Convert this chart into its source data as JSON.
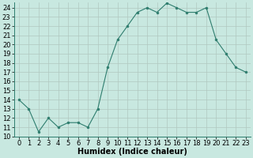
{
  "x": [
    0,
    1,
    2,
    3,
    4,
    5,
    6,
    7,
    8,
    9,
    10,
    11,
    12,
    13,
    14,
    15,
    16,
    17,
    18,
    19,
    20,
    21,
    22,
    23
  ],
  "y": [
    14,
    13,
    10.5,
    12,
    11,
    11.5,
    11.5,
    11,
    13,
    17.5,
    20.5,
    22,
    23.5,
    24,
    23.5,
    24.5,
    24,
    23.5,
    23.5,
    24,
    20.5,
    19,
    17.5,
    17
  ],
  "line_color": "#2e7d6e",
  "marker_color": "#2e7d6e",
  "bg_color": "#c8e8e0",
  "grid_color": "#b0c8c0",
  "xlabel": "Humidex (Indice chaleur)",
  "ylim": [
    10,
    24.6
  ],
  "xlim": [
    -0.5,
    23.5
  ],
  "yticks": [
    10,
    11,
    12,
    13,
    14,
    15,
    16,
    17,
    18,
    19,
    20,
    21,
    22,
    23,
    24
  ],
  "xticks": [
    0,
    1,
    2,
    3,
    4,
    5,
    6,
    7,
    8,
    9,
    10,
    11,
    12,
    13,
    14,
    15,
    16,
    17,
    18,
    19,
    20,
    21,
    22,
    23
  ],
  "label_fontsize": 7,
  "tick_fontsize": 6
}
